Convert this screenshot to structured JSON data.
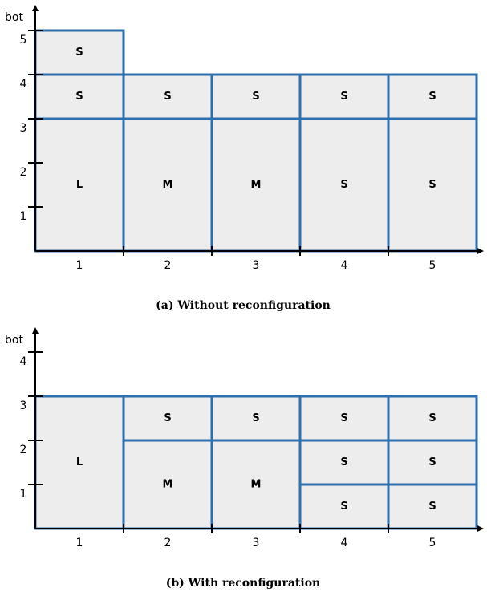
{
  "diagrams": [
    {
      "caption": "(a) Without reconfiguration",
      "y_axis_label": "bot",
      "x_ticks": [
        "1",
        "2",
        "3",
        "4",
        "5"
      ],
      "y_ticks": [
        "1",
        "2",
        "3",
        "4",
        "5"
      ],
      "blocks": [
        {
          "label": "L",
          "col": 1,
          "span": 1,
          "y0": 0,
          "y1": 3
        },
        {
          "label": "S",
          "col": 1,
          "span": 1,
          "y0": 3,
          "y1": 4
        },
        {
          "label": "S",
          "col": 1,
          "span": 1,
          "y0": 4,
          "y1": 5
        },
        {
          "label": "M",
          "col": 2,
          "span": 1,
          "y0": 0,
          "y1": 3
        },
        {
          "label": "S",
          "col": 2,
          "span": 1,
          "y0": 3,
          "y1": 4
        },
        {
          "label": "M",
          "col": 3,
          "span": 1,
          "y0": 0,
          "y1": 3
        },
        {
          "label": "S",
          "col": 3,
          "span": 1,
          "y0": 3,
          "y1": 4
        },
        {
          "label": "S",
          "col": 4,
          "span": 1,
          "y0": 0,
          "y1": 3
        },
        {
          "label": "S",
          "col": 4,
          "span": 1,
          "y0": 3,
          "y1": 4
        },
        {
          "label": "S",
          "col": 5,
          "span": 1,
          "y0": 0,
          "y1": 3
        },
        {
          "label": "S",
          "col": 5,
          "span": 1,
          "y0": 3,
          "y1": 4
        }
      ]
    },
    {
      "caption": "(b) With reconfiguration",
      "y_axis_label": "bot",
      "x_ticks": [
        "1",
        "2",
        "3",
        "4",
        "5"
      ],
      "y_ticks": [
        "1",
        "2",
        "3",
        "4"
      ],
      "blocks": [
        {
          "label": "L",
          "col": 1,
          "span": 1,
          "y0": 0,
          "y1": 3
        },
        {
          "label": "M",
          "col": 2,
          "span": 1,
          "y0": 0,
          "y1": 2
        },
        {
          "label": "S",
          "col": 2,
          "span": 1,
          "y0": 2,
          "y1": 3
        },
        {
          "label": "M",
          "col": 3,
          "span": 1,
          "y0": 0,
          "y1": 2
        },
        {
          "label": "S",
          "col": 3,
          "span": 1,
          "y0": 2,
          "y1": 3
        },
        {
          "label": "S",
          "col": 4,
          "span": 1,
          "y0": 0,
          "y1": 1
        },
        {
          "label": "S",
          "col": 4,
          "span": 1,
          "y0": 1,
          "y1": 2
        },
        {
          "label": "S",
          "col": 4,
          "span": 1,
          "y0": 2,
          "y1": 3
        },
        {
          "label": "S",
          "col": 5,
          "span": 1,
          "y0": 0,
          "y1": 1
        },
        {
          "label": "S",
          "col": 5,
          "span": 1,
          "y0": 1,
          "y1": 2
        },
        {
          "label": "S",
          "col": 5,
          "span": 1,
          "y0": 2,
          "y1": 3
        }
      ]
    }
  ],
  "colors": {
    "box_fill": "#ededed",
    "box_stroke": "#2e6fad",
    "axis": "#000000"
  }
}
